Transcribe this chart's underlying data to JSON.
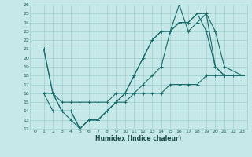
{
  "xlabel": "Humidex (Indice chaleur)",
  "background_color": "#c6e8e8",
  "grid_color": "#9fcfcf",
  "line_color": "#1a6b6b",
  "xlim": [
    -0.5,
    23.5
  ],
  "ylim": [
    12,
    26
  ],
  "xtick_labels": [
    "0",
    "1",
    "2",
    "3",
    "4",
    "5",
    "6",
    "7",
    "8",
    "9",
    "10",
    "11",
    "12",
    "13",
    "14",
    "15",
    "16",
    "17",
    "18",
    "19",
    "20",
    "21",
    "22",
    "23"
  ],
  "xtick_vals": [
    0,
    1,
    2,
    3,
    4,
    5,
    6,
    7,
    8,
    9,
    10,
    11,
    12,
    13,
    14,
    15,
    16,
    17,
    18,
    19,
    20,
    21,
    22,
    23
  ],
  "ytick_vals": [
    12,
    13,
    14,
    15,
    16,
    17,
    18,
    19,
    20,
    21,
    22,
    23,
    24,
    25,
    26
  ],
  "series": [
    {
      "x": [
        1,
        2,
        3,
        4,
        5,
        6,
        7,
        8,
        9,
        10,
        11,
        12,
        13,
        14,
        15,
        16,
        17,
        18,
        19,
        20,
        21,
        23
      ],
      "y": [
        21,
        16,
        14,
        14,
        12,
        13,
        13,
        14,
        15,
        16,
        18,
        20,
        22,
        23,
        23,
        26,
        23,
        24,
        25,
        19,
        18,
        18
      ]
    },
    {
      "x": [
        1,
        2,
        3,
        4,
        5,
        6,
        7,
        8,
        9,
        10,
        11,
        12,
        13,
        14,
        15,
        16,
        17,
        18,
        19,
        20,
        21,
        23
      ],
      "y": [
        21,
        16,
        14,
        14,
        12,
        13,
        13,
        14,
        15,
        16,
        18,
        20,
        22,
        23,
        23,
        24,
        24,
        25,
        25,
        23,
        19,
        18
      ]
    },
    {
      "x": [
        1,
        2,
        3,
        4,
        5,
        6,
        7,
        8,
        9,
        10,
        11,
        12,
        13,
        14,
        15,
        16,
        17,
        18,
        19,
        20,
        21,
        22,
        23
      ],
      "y": [
        16,
        16,
        15,
        15,
        15,
        15,
        15,
        15,
        16,
        16,
        16,
        16,
        16,
        16,
        17,
        17,
        17,
        17,
        18,
        18,
        18,
        18,
        18
      ]
    },
    {
      "x": [
        1,
        2,
        3,
        4,
        5,
        6,
        7,
        8,
        9,
        10,
        11,
        12,
        13,
        14,
        15,
        16,
        17,
        18,
        19,
        20,
        21,
        23
      ],
      "y": [
        16,
        14,
        14,
        13,
        12,
        13,
        13,
        14,
        15,
        15,
        16,
        17,
        18,
        19,
        23,
        24,
        24,
        25,
        23,
        19,
        18,
        18
      ]
    }
  ]
}
